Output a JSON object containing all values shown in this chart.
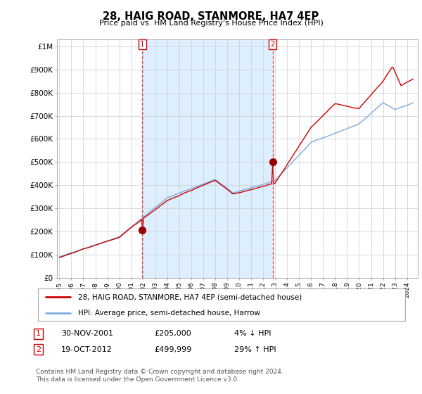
{
  "title": "28, HAIG ROAD, STANMORE, HA7 4EP",
  "subtitle": "Price paid vs. HM Land Registry's House Price Index (HPI)",
  "ytick_labels": [
    "£0",
    "£100K",
    "£200K",
    "£300K",
    "£400K",
    "£500K",
    "£600K",
    "£700K",
    "£800K",
    "£900K",
    "£1M"
  ],
  "transaction_prices": [
    205000,
    499999
  ],
  "legend_line1": "28, HAIG ROAD, STANMORE, HA7 4EP (semi-detached house)",
  "legend_line2": "HPI: Average price, semi-detached house, Harrow",
  "annotation1_date": "30-NOV-2001",
  "annotation1_price": "£205,000",
  "annotation1_change": "4% ↓ HPI",
  "annotation2_date": "19-OCT-2012",
  "annotation2_price": "£499,999",
  "annotation2_change": "29% ↑ HPI",
  "footer": "Contains HM Land Registry data © Crown copyright and database right 2024.\nThis data is licensed under the Open Government Licence v3.0.",
  "line_color_red": "#cc0000",
  "line_color_blue": "#7aabdb",
  "marker_color": "#990000",
  "vline_color": "#dd4444",
  "shade_color": "#ddeeff",
  "grid_color": "#cccccc",
  "background_color": "#ffffff",
  "trans_year1": 2001.92,
  "trans_year2": 2012.79
}
